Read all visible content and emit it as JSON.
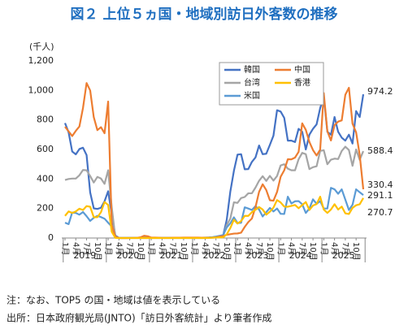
{
  "chart_data": {
    "type": "line",
    "title": "図２ 上位５ヵ国・地域別訪日外客数の推移",
    "y_unit": "(千人)",
    "categories": [
      "1月",
      null,
      null,
      "4月",
      null,
      null,
      "7月",
      null,
      null,
      "10月",
      null,
      null,
      "1月",
      null,
      null,
      "4月",
      null,
      null,
      "7月",
      null,
      null,
      "10月",
      null,
      null,
      "1月",
      null,
      null,
      "4月",
      null,
      null,
      "7月",
      null,
      null,
      "10月",
      null,
      null,
      "1月",
      null,
      null,
      "4月",
      null,
      null,
      "7月",
      null,
      null,
      "10月",
      null,
      null,
      "1月",
      null,
      null,
      "4月",
      null,
      null,
      "7月",
      null,
      null,
      "10月",
      null,
      null,
      "1月",
      null,
      null,
      "4月",
      null,
      null,
      "7月",
      null,
      null,
      "10月",
      null,
      null,
      "1月",
      null,
      null,
      "4月",
      null,
      null,
      "7月",
      null,
      null,
      "10月",
      null,
      null
    ],
    "year_labels": [
      "2019",
      "2020",
      "2021",
      "2022",
      "2023",
      "2024",
      "2025"
    ],
    "series": [
      {
        "name": "韓国",
        "color": "#4472c4",
        "values": [
          779,
          716,
          586,
          567,
          603,
          612,
          562,
          309,
          201,
          197,
          205,
          249,
          317,
          160,
          17,
          1,
          1,
          1,
          1,
          1,
          1,
          1,
          1,
          1,
          1,
          1,
          1,
          1,
          1,
          1,
          1,
          1,
          1,
          1,
          1,
          1,
          1,
          1,
          1,
          1,
          2,
          4,
          7,
          9,
          16,
          124,
          315,
          456,
          565,
          568,
          466,
          467,
          516,
          546,
          627,
          568,
          571,
          631,
          694,
          866,
          857,
          814,
          660,
          660,
          650,
          740,
          720,
          600,
          700,
          740,
          770,
          880,
          960,
          720,
          700,
          820,
          720,
          680,
          660,
          700,
          640,
          860,
          820,
          974.2
        ]
      },
      {
        "name": "台湾",
        "color": "#a5a5a5",
        "values": [
          393,
          400,
          403,
          403,
          425,
          461,
          459,
          420,
          376,
          414,
          403,
          367,
          459,
          209,
          4,
          0,
          0,
          0,
          0,
          0,
          0,
          0,
          0,
          0,
          0,
          0,
          0,
          0,
          0,
          0,
          0,
          0,
          0,
          0,
          0,
          0,
          0,
          0,
          0,
          0,
          1,
          2,
          3,
          5,
          12,
          88,
          132,
          242,
          238,
          271,
          278,
          303,
          303,
          342,
          388,
          419,
          387,
          421,
          389,
          420,
          492,
          500,
          470,
          459,
          459,
          534,
          577,
          568,
          467,
          480,
          486,
          590,
          595,
          500,
          531,
          538,
          535,
          590,
          619,
          596,
          489,
          600,
          530,
          588.4
        ]
      },
      {
        "name": "米国",
        "color": "#5b9bd5",
        "values": [
          104,
          94,
          173,
          170,
          158,
          176,
          148,
          116,
          137,
          150,
          142,
          131,
          104,
          78,
          13,
          0,
          0,
          0,
          1,
          1,
          1,
          1,
          1,
          1,
          1,
          1,
          1,
          1,
          1,
          1,
          1,
          1,
          1,
          1,
          1,
          1,
          1,
          1,
          2,
          3,
          4,
          6,
          10,
          15,
          20,
          72,
          100,
          140,
          102,
          103,
          208,
          200,
          190,
          216,
          193,
          146,
          175,
          204,
          180,
          200,
          164,
          163,
          280,
          234,
          249,
          250,
          229,
          170,
          200,
          262,
          232,
          250,
          200,
          200,
          340,
          330,
          300,
          330,
          260,
          190,
          225,
          330,
          310,
          291.1
        ]
      },
      {
        "name": "中国",
        "color": "#ed7d31",
        "values": [
          754,
          723,
          691,
          726,
          756,
          881,
          1050,
          1000,
          819,
          731,
          751,
          710,
          925,
          88,
          10,
          0,
          0,
          0,
          0,
          1,
          1,
          5,
          15,
          12,
          3,
          3,
          2,
          1,
          1,
          1,
          2,
          2,
          2,
          3,
          3,
          3,
          3,
          3,
          2,
          2,
          2,
          3,
          5,
          10,
          13,
          22,
          26,
          30,
          31,
          36,
          75,
          108,
          132,
          209,
          313,
          364,
          325,
          256,
          253,
          312,
          415,
          459,
          534,
          533,
          545,
          584,
          777,
          733,
          651,
          596,
          559,
          599,
          982,
          723,
          661,
          765,
          789,
          797,
          971,
          1018,
          775,
          716,
          563,
          330.4
        ]
      },
      {
        "name": "香港",
        "color": "#ffc000",
        "values": [
          150,
          180,
          170,
          180,
          199,
          190,
          216,
          212,
          141,
          141,
          175,
          244,
          224,
          42,
          1,
          0,
          0,
          0,
          0,
          0,
          0,
          0,
          0,
          0,
          0,
          0,
          0,
          0,
          0,
          0,
          0,
          0,
          0,
          0,
          0,
          0,
          0,
          0,
          0,
          0,
          1,
          2,
          3,
          4,
          5,
          25,
          68,
          124,
          98,
          115,
          150,
          150,
          175,
          191,
          210,
          193,
          158,
          178,
          206,
          257,
          241,
          213,
          212,
          218,
          224,
          202,
          223,
          244,
          190,
          220,
          230,
          280,
          193,
          170,
          193,
          229,
          193,
          213,
          167,
          163,
          204,
          222,
          229,
          270.7
        ]
      }
    ],
    "ylim": [
      0,
      1200
    ],
    "yticks": [
      0,
      200,
      400,
      600,
      800,
      {
        "value": 1000,
        "label": "1,000"
      },
      {
        "value": 1200,
        "label": "1,200"
      }
    ],
    "grid": false,
    "legend": "top-center",
    "notes": [
      "注：なお、TOP5 の国・地域は値を表示している",
      "出所：日本政府観光局(JNTO)「訪日外客統計」より筆者作成"
    ]
  }
}
